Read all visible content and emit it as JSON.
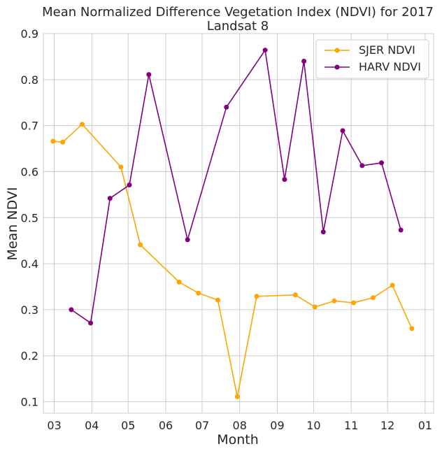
{
  "chart_data": {
    "type": "line",
    "title_line1": "Mean Normalized Difference Vegetation Index (NDVI) for 2017",
    "title_line2": "Landsat 8",
    "xlabel": "Month",
    "ylabel": "Mean NDVI",
    "ylim": [
      0.075,
      0.9
    ],
    "xlim": [
      "2017-02-20",
      "2018-01-08"
    ],
    "x_ticks": [
      {
        "date": "2017-03-01",
        "label": "03"
      },
      {
        "date": "2017-04-01",
        "label": "04"
      },
      {
        "date": "2017-05-01",
        "label": "05"
      },
      {
        "date": "2017-06-01",
        "label": "06"
      },
      {
        "date": "2017-07-01",
        "label": "07"
      },
      {
        "date": "2017-08-01",
        "label": "08"
      },
      {
        "date": "2017-09-01",
        "label": "09"
      },
      {
        "date": "2017-10-01",
        "label": "10"
      },
      {
        "date": "2017-11-01",
        "label": "11"
      },
      {
        "date": "2017-12-01",
        "label": "12"
      },
      {
        "date": "2018-01-01",
        "label": "01"
      }
    ],
    "y_ticks": [
      "0.1",
      "0.2",
      "0.3",
      "0.4",
      "0.5",
      "0.6",
      "0.7",
      "0.8",
      "0.9"
    ],
    "grid": true,
    "legend_position": "top-right",
    "series": [
      {
        "name": "SJER NDVI",
        "color": "#ffa500",
        "points": [
          {
            "x": "2017-02-28",
            "y": 0.666
          },
          {
            "x": "2017-03-08",
            "y": 0.664
          },
          {
            "x": "2017-03-24",
            "y": 0.703
          },
          {
            "x": "2017-04-25",
            "y": 0.61
          },
          {
            "x": "2017-05-11",
            "y": 0.441
          },
          {
            "x": "2017-06-12",
            "y": 0.36
          },
          {
            "x": "2017-06-28",
            "y": 0.336
          },
          {
            "x": "2017-07-14",
            "y": 0.321
          },
          {
            "x": "2017-07-30",
            "y": 0.111
          },
          {
            "x": "2017-08-15",
            "y": 0.329
          },
          {
            "x": "2017-09-16",
            "y": 0.332
          },
          {
            "x": "2017-10-02",
            "y": 0.306
          },
          {
            "x": "2017-10-18",
            "y": 0.319
          },
          {
            "x": "2017-11-03",
            "y": 0.315
          },
          {
            "x": "2017-11-19",
            "y": 0.326
          },
          {
            "x": "2017-12-05",
            "y": 0.353
          },
          {
            "x": "2017-12-21",
            "y": 0.259
          }
        ]
      },
      {
        "name": "HARV NDVI",
        "color": "#800080",
        "points": [
          {
            "x": "2017-03-15",
            "y": 0.3
          },
          {
            "x": "2017-03-31",
            "y": 0.271
          },
          {
            "x": "2017-04-16",
            "y": 0.542
          },
          {
            "x": "2017-05-02",
            "y": 0.571
          },
          {
            "x": "2017-05-18",
            "y": 0.811
          },
          {
            "x": "2017-06-19",
            "y": 0.452
          },
          {
            "x": "2017-07-21",
            "y": 0.74
          },
          {
            "x": "2017-08-22",
            "y": 0.864
          },
          {
            "x": "2017-09-07",
            "y": 0.583
          },
          {
            "x": "2017-09-23",
            "y": 0.84
          },
          {
            "x": "2017-10-09",
            "y": 0.469
          },
          {
            "x": "2017-10-25",
            "y": 0.689
          },
          {
            "x": "2017-11-10",
            "y": 0.613
          },
          {
            "x": "2017-11-26",
            "y": 0.619
          },
          {
            "x": "2017-12-12",
            "y": 0.473
          }
        ]
      }
    ]
  }
}
